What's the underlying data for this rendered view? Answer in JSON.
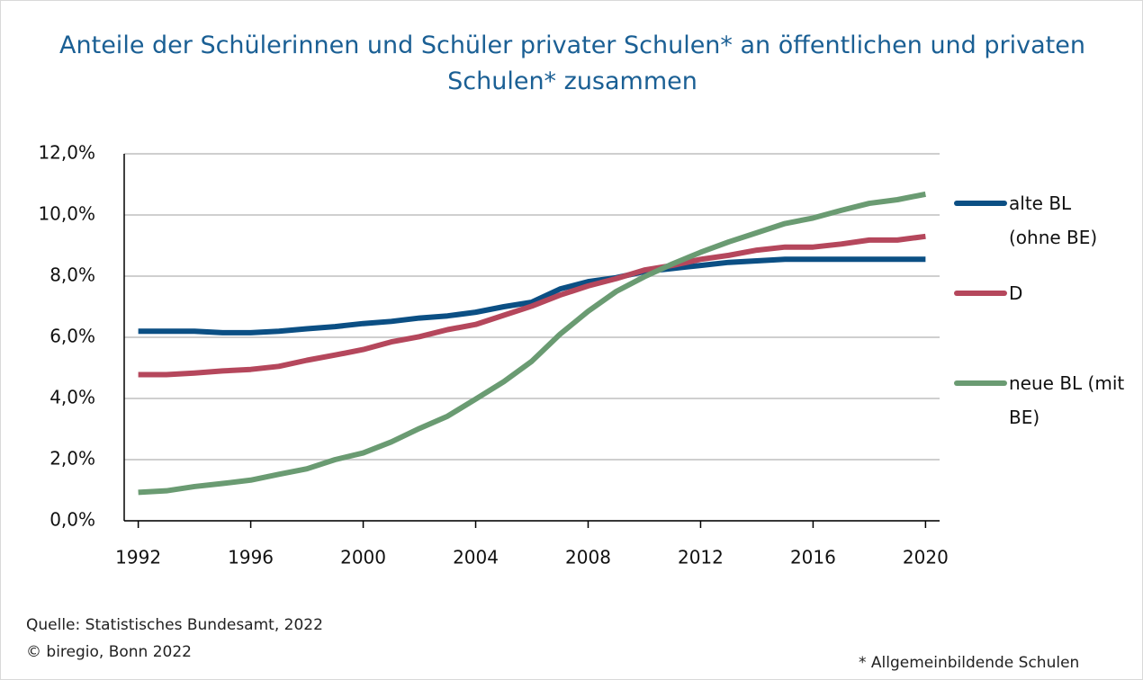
{
  "chart_data": {
    "type": "line",
    "title": "Anteile der Schülerinnen und Schüler privater Schulen* an öffentlichen und privaten Schulen* zusammen",
    "x": [
      1992,
      1993,
      1994,
      1995,
      1996,
      1997,
      1998,
      1999,
      2000,
      2001,
      2002,
      2003,
      2004,
      2005,
      2006,
      2007,
      2008,
      2009,
      2010,
      2011,
      2012,
      2013,
      2014,
      2015,
      2016,
      2017,
      2018,
      2019,
      2020
    ],
    "series": [
      {
        "name": "alte BL (ohne BE)",
        "color": "#0b4f84",
        "values": [
          6.2,
          6.2,
          6.2,
          6.15,
          6.15,
          6.2,
          6.28,
          6.35,
          6.45,
          6.52,
          6.63,
          6.7,
          6.82,
          7.0,
          7.15,
          7.58,
          7.82,
          7.95,
          8.15,
          8.25,
          8.35,
          8.45,
          8.5,
          8.55,
          8.55,
          8.55,
          8.55,
          8.55,
          8.55
        ]
      },
      {
        "name": "D",
        "color": "#b5475c",
        "values": [
          4.78,
          4.78,
          4.83,
          4.9,
          4.95,
          5.05,
          5.25,
          5.42,
          5.6,
          5.85,
          6.02,
          6.25,
          6.42,
          6.72,
          7.02,
          7.38,
          7.68,
          7.92,
          8.2,
          8.35,
          8.55,
          8.68,
          8.85,
          8.95,
          8.95,
          9.05,
          9.18,
          9.18,
          9.3
        ]
      },
      {
        "name": "neue BL (mit BE)",
        "color": "#6a9b72",
        "values": [
          0.93,
          0.98,
          1.12,
          1.22,
          1.33,
          1.52,
          1.7,
          2.0,
          2.22,
          2.58,
          3.02,
          3.42,
          3.98,
          4.55,
          5.22,
          6.1,
          6.85,
          7.5,
          7.98,
          8.4,
          8.78,
          9.12,
          9.42,
          9.72,
          9.9,
          10.15,
          10.38,
          10.5,
          10.68
        ]
      }
    ],
    "xlim": [
      1991.5,
      2020.5
    ],
    "xticks": [
      1992,
      1996,
      2000,
      2004,
      2008,
      2012,
      2016,
      2020
    ],
    "ylim": [
      0,
      12
    ],
    "yticks": [
      {
        "value": 0,
        "label": "0,0%"
      },
      {
        "value": 2,
        "label": "2,0%"
      },
      {
        "value": 4,
        "label": "4,0%"
      },
      {
        "value": 6,
        "label": "6,0%"
      },
      {
        "value": 8,
        "label": "8,0%"
      },
      {
        "value": 10,
        "label": "10,0%"
      },
      {
        "value": 12,
        "label": "12,0%"
      }
    ],
    "grid": true,
    "source": "Quelle: Statistisches Bundesamt, 2022",
    "copyright": "© biregio, Bonn 2022",
    "footnote": "* Allgemeinbildende Schulen"
  }
}
